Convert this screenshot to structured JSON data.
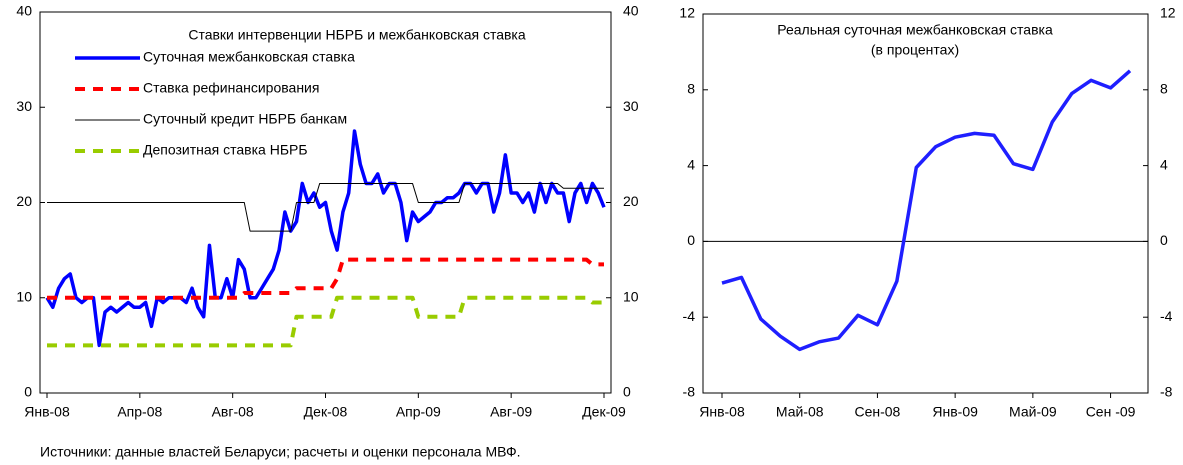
{
  "chart_data": [
    {
      "type": "line",
      "title": "Ставки интервенции НБРБ и межбанковская ставка",
      "categories": [
        "Янв-08",
        null,
        null,
        null,
        null,
        null,
        null,
        null,
        null,
        null,
        null,
        null,
        null,
        null,
        null,
        null,
        "Апр-08",
        null,
        null,
        null,
        null,
        null,
        null,
        null,
        null,
        null,
        null,
        null,
        null,
        null,
        null,
        null,
        "Авг-08",
        null,
        null,
        null,
        null,
        null,
        null,
        null,
        null,
        null,
        null,
        null,
        null,
        null,
        null,
        null,
        "Дек-08",
        null,
        null,
        null,
        null,
        null,
        null,
        null,
        null,
        null,
        null,
        null,
        null,
        null,
        null,
        null,
        "Апр-09",
        null,
        null,
        null,
        null,
        null,
        null,
        null,
        null,
        null,
        null,
        null,
        null,
        null,
        null,
        null,
        "Авг-09",
        null,
        null,
        null,
        null,
        null,
        null,
        null,
        null,
        null,
        null,
        null,
        null,
        null,
        null,
        null,
        "Дек-09"
      ],
      "series": [
        {
          "name": "Суточная межбанковская ставка",
          "color": "#0000ff",
          "line_style": "thick",
          "values": [
            10,
            9,
            11,
            12,
            12.5,
            10,
            9.5,
            10,
            10,
            5,
            8.5,
            9,
            8.5,
            9,
            9.5,
            9,
            9,
            9.5,
            7,
            10,
            9.5,
            10,
            10,
            10,
            9.5,
            11,
            9,
            8,
            15.5,
            10,
            10,
            12,
            10,
            14,
            13,
            10,
            10,
            11,
            12,
            13,
            15,
            19,
            17,
            18,
            22,
            20,
            21,
            19.5,
            20,
            17,
            15,
            19,
            21,
            27.5,
            24,
            22,
            22,
            23,
            21,
            22,
            22,
            20,
            16,
            19,
            18,
            18.5,
            19,
            20,
            20,
            20.5,
            20.5,
            21,
            22,
            22,
            21,
            22,
            22,
            19,
            21,
            25,
            21,
            21,
            20,
            21,
            19,
            22,
            20,
            22,
            21,
            21,
            18,
            21,
            22,
            20,
            22,
            21,
            19.5
          ]
        },
        {
          "name": "Ставка рефинансирования",
          "color": "#ff0000",
          "line_style": "dashed",
          "values": [
            10,
            10,
            10,
            10,
            10,
            10,
            10,
            10,
            10,
            10,
            10,
            10,
            10,
            10,
            10,
            10,
            10,
            10,
            10,
            10,
            10,
            10,
            10,
            10,
            10,
            10,
            10,
            10,
            10,
            10,
            10,
            10,
            10,
            10,
            10.5,
            10.5,
            10.5,
            10.5,
            10.5,
            10.5,
            10.5,
            10.5,
            10.5,
            11,
            11,
            11,
            11,
            11,
            11,
            11,
            12,
            14,
            14,
            14,
            14,
            14,
            14,
            14,
            14,
            14,
            14,
            14,
            14,
            14,
            14,
            14,
            14,
            14,
            14,
            14,
            14,
            14,
            14,
            14,
            14,
            14,
            14,
            14,
            14,
            14,
            14,
            14,
            14,
            14,
            14,
            14,
            14,
            14,
            14,
            14,
            14,
            14,
            14,
            14,
            13.5,
            13.5,
            13.5
          ]
        },
        {
          "name": "Суточный кредит НБРБ банкам",
          "color": "#000000",
          "line_style": "thin",
          "values": [
            20,
            20,
            20,
            20,
            20,
            20,
            20,
            20,
            20,
            20,
            20,
            20,
            20,
            20,
            20,
            20,
            20,
            20,
            20,
            20,
            20,
            20,
            20,
            20,
            20,
            20,
            20,
            20,
            20,
            20,
            20,
            20,
            20,
            20,
            20,
            17,
            17,
            17,
            17,
            17,
            17,
            17,
            17,
            20,
            20,
            20,
            20,
            22,
            22,
            22,
            22,
            22,
            22,
            22,
            22,
            22,
            22,
            22,
            22,
            22,
            22,
            22,
            22,
            22,
            20,
            20,
            20,
            20,
            20,
            20,
            20,
            20,
            22,
            22,
            22,
            22,
            22,
            22,
            22,
            22,
            22,
            22,
            22,
            22,
            22,
            22,
            22,
            22,
            22,
            21.5,
            21.5,
            21.5,
            21.5,
            21.5,
            21.5,
            21.5,
            21.5
          ]
        },
        {
          "name": "Депозитная ставка НБРБ",
          "color": "#99cc00",
          "line_style": "dashed",
          "values": [
            5,
            5,
            5,
            5,
            5,
            5,
            5,
            5,
            5,
            5,
            5,
            5,
            5,
            5,
            5,
            5,
            5,
            5,
            5,
            5,
            5,
            5,
            5,
            5,
            5,
            5,
            5,
            5,
            5,
            5,
            5,
            5,
            5,
            5,
            5,
            5,
            5,
            5,
            5,
            5,
            5,
            5,
            5,
            8,
            8,
            8,
            8,
            8,
            8,
            8,
            10,
            10,
            10,
            10,
            10,
            10,
            10,
            10,
            10,
            10,
            10,
            10,
            10,
            10,
            8,
            8,
            8,
            8,
            8,
            8,
            8,
            8,
            10,
            10,
            10,
            10,
            10,
            10,
            10,
            10,
            10,
            10,
            10,
            10,
            10,
            10,
            10,
            10,
            10,
            10,
            10,
            10,
            10,
            10,
            9.5,
            9.5,
            9.5
          ]
        }
      ],
      "ylim": [
        0,
        40
      ],
      "yticks": [
        0,
        10,
        20,
        30,
        40
      ],
      "y2lim": [
        0,
        40
      ],
      "y2ticks": [
        0,
        10,
        20,
        30,
        40
      ]
    },
    {
      "type": "line",
      "title": "Реальная суточная межбанковская ставка",
      "subtitle": "(в процентах)",
      "categories": [
        "Янв-08",
        null,
        null,
        null,
        "Май-08",
        null,
        null,
        null,
        "Сен-08",
        null,
        null,
        null,
        "Янв-09",
        null,
        null,
        null,
        "Май-09",
        null,
        null,
        null,
        "Сен -09",
        null
      ],
      "series": [
        {
          "name": "Реальная суточная межбанковская ставка",
          "color": "#1f1fff",
          "line_style": "thick",
          "values": [
            -2.2,
            -1.9,
            -4.1,
            -5.0,
            -5.7,
            -5.3,
            -5.1,
            -3.9,
            -4.4,
            -2.1,
            3.9,
            5.0,
            5.5,
            5.7,
            5.6,
            4.1,
            3.8,
            6.3,
            7.8,
            8.5,
            8.1,
            9.0
          ]
        }
      ],
      "ylim": [
        -8,
        12
      ],
      "yticks": [
        -8,
        -4,
        0,
        4,
        8,
        12
      ],
      "y2lim": [
        -8,
        12
      ],
      "y2ticks": [
        -8,
        -4,
        0,
        4,
        8,
        12
      ]
    }
  ],
  "source": "Источники: данные властей Беларуси; расчеты и оценки персонала МВФ."
}
